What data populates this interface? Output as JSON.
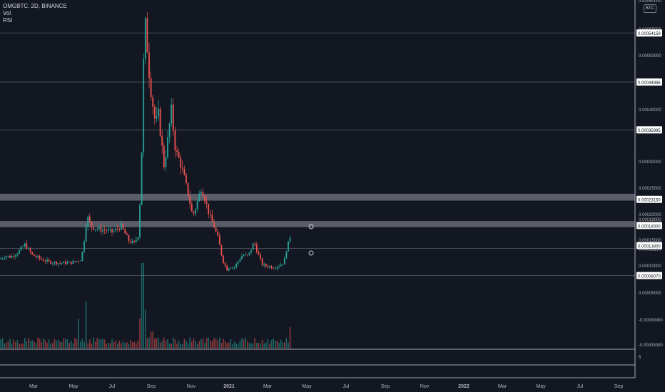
{
  "header": {
    "symbol_line": "OMGBTC, 2D, BINANCE",
    "indicator_1": "Vol",
    "indicator_2": "RSI",
    "currency": "BTC"
  },
  "colors": {
    "background": "#131722",
    "up": "#26a69a",
    "down": "#ef5350",
    "grid": "#2a2e39",
    "zone": "#9598a1",
    "hline": "#b2b5be",
    "text": "#d1d4dc"
  },
  "chart_data": {
    "type": "candlestick",
    "symbol": "OMGBTC",
    "interval": "2D",
    "exchange": "BINANCE",
    "x_tick_labels": [
      "Mar",
      "May",
      "Jul",
      "Sep",
      "Nov",
      "2021",
      "Mar",
      "May",
      "Jul",
      "Sep",
      "Nov",
      "2022",
      "Mar",
      "May",
      "Jul",
      "Sep"
    ],
    "price_tick_labels": [
      "0.00060000",
      "0.00055000",
      "0.00050000",
      "0.00040000",
      "0.00030000",
      "0.00025000",
      "0.00020000",
      "0.00019000",
      "0.00018000",
      "0.00015000",
      "0.00013250",
      "0.00010000",
      "0.00005000",
      "-0.00000000",
      "-0.00005000"
    ],
    "price_markers": [
      "0.00054159",
      "0.00044986",
      "0.00035995",
      "0.00023150",
      "0.00018000",
      "0.00013800",
      "0.00008070"
    ],
    "price_levels": [
      0.00054159,
      0.00044986,
      0.00035995,
      0.0001325,
      8.07e-05
    ],
    "zones": [
      [
        0.000225,
        0.000238
      ],
      [
        0.000174,
        0.000186
      ]
    ],
    "rsi_tick_label": "5",
    "close_path": [
      [
        0,
        0.000112
      ],
      [
        8,
        0.000118
      ],
      [
        15,
        0.000116
      ],
      [
        25,
        0.000125
      ],
      [
        35,
        0.00014
      ],
      [
        45,
        0.00012
      ],
      [
        60,
        0.00011
      ],
      [
        70,
        0.000106
      ],
      [
        85,
        0.000104
      ],
      [
        100,
        0.000105
      ],
      [
        108,
        0.000108
      ],
      [
        114,
        0.000112
      ],
      [
        118,
        0.00015
      ],
      [
        122,
        0.000196
      ],
      [
        128,
        0.000175
      ],
      [
        138,
        0.00017
      ],
      [
        148,
        0.000168
      ],
      [
        158,
        0.000165
      ],
      [
        170,
        0.000176
      ],
      [
        180,
        0.000148
      ],
      [
        188,
        0.000142
      ],
      [
        194,
        0.00016
      ],
      [
        198,
        0.00028
      ],
      [
        201,
        0.00048
      ],
      [
        204,
        0.00056
      ],
      [
        206,
        0.00052
      ],
      [
        210,
        0.00045
      ],
      [
        214,
        0.00041
      ],
      [
        218,
        0.00037
      ],
      [
        222,
        0.00039
      ],
      [
        226,
        0.00034
      ],
      [
        230,
        0.00029
      ],
      [
        236,
        0.00035
      ],
      [
        240,
        0.0004
      ],
      [
        246,
        0.00032
      ],
      [
        252,
        0.0003
      ],
      [
        258,
        0.00027
      ],
      [
        264,
        0.000235
      ],
      [
        270,
        0.000195
      ],
      [
        276,
        0.00022
      ],
      [
        282,
        0.00025
      ],
      [
        288,
        0.000225
      ],
      [
        294,
        0.000195
      ],
      [
        300,
        0.000175
      ],
      [
        306,
        0.00015
      ],
      [
        312,
        0.00011
      ],
      [
        318,
        9.2e-05
      ],
      [
        322,
        9.8e-05
      ],
      [
        328,
        9.5e-05
      ],
      [
        334,
        0.000108
      ],
      [
        340,
        0.00012
      ],
      [
        348,
        0.000118
      ],
      [
        356,
        0.000145
      ],
      [
        362,
        0.00012
      ],
      [
        368,
        0.0001
      ],
      [
        376,
        9.8e-05
      ],
      [
        384,
        9.6e-05
      ],
      [
        392,
        0.0001
      ],
      [
        398,
        0.000105
      ],
      [
        402,
        0.000135
      ],
      [
        406,
        0.00015
      ],
      [
        409,
        0.00018
      ]
    ],
    "volume_peaks": [
      [
        110,
        0.35
      ],
      [
        120,
        0.55
      ],
      [
        196,
        0.35
      ],
      [
        200,
        1.0
      ],
      [
        204,
        0.45
      ],
      [
        213,
        0.2
      ],
      [
        408,
        0.25
      ]
    ]
  }
}
